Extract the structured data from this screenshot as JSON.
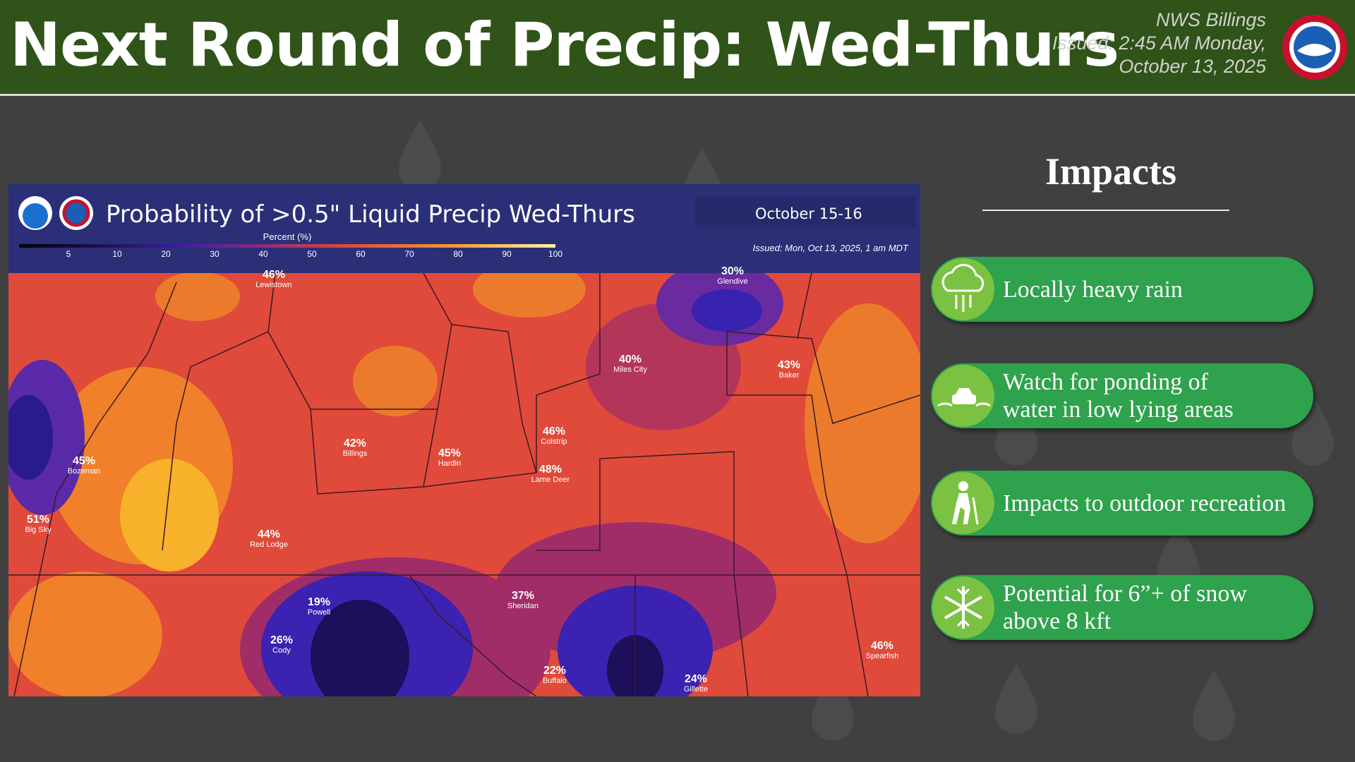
{
  "header": {
    "title": "Next Round of Precip: Wed-Thurs",
    "office": "NWS Billings",
    "issued_line1": "Issued: 2:45 AM Monday,",
    "issued_line2": "October 13, 2025"
  },
  "map": {
    "title": "Probability of >0.5\" Liquid Precip Wed-Thurs",
    "date": "October 15-16",
    "issued": "Issued: Mon, Oct 13, 2025, 1 am MDT",
    "legend_label": "Percent (%)",
    "legend_ticks": [
      "5",
      "10",
      "20",
      "30",
      "40",
      "50",
      "60",
      "70",
      "80",
      "90",
      "100"
    ],
    "cities": [
      {
        "value": "46%",
        "name": "Lewistown"
      },
      {
        "value": "30%",
        "name": "Glendive"
      },
      {
        "value": "40%",
        "name": "Miles City"
      },
      {
        "value": "43%",
        "name": "Baker"
      },
      {
        "value": "46%",
        "name": "Colstrip"
      },
      {
        "value": "48%",
        "name": "Lame Deer"
      },
      {
        "value": "42%",
        "name": "Billings"
      },
      {
        "value": "45%",
        "name": "Hardin"
      },
      {
        "value": "45%",
        "name": "Bozeman"
      },
      {
        "value": "51%",
        "name": "Big Sky"
      },
      {
        "value": "44%",
        "name": "Red Lodge"
      },
      {
        "value": "19%",
        "name": "Powell"
      },
      {
        "value": "26%",
        "name": "Cody"
      },
      {
        "value": "37%",
        "name": "Sheridan"
      },
      {
        "value": "22%",
        "name": "Buffalo"
      },
      {
        "value": "24%",
        "name": "Gillette"
      },
      {
        "value": "46%",
        "name": "Spearfish"
      }
    ]
  },
  "impacts": {
    "heading": "Impacts",
    "items": [
      [
        "Locally heavy rain"
      ],
      [
        "Watch for ponding of",
        "water in low lying areas"
      ],
      [
        "Impacts to outdoor recreation"
      ],
      [
        "Potential for 6”+ of snow",
        "above 8 kft"
      ]
    ]
  }
}
